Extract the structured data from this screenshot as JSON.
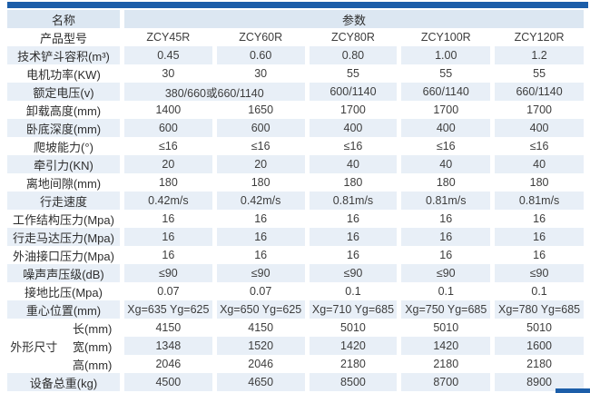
{
  "table": {
    "header": {
      "name_label": "名称",
      "param_label": "参数"
    },
    "rows": [
      {
        "label": "产品型号",
        "cells": [
          "ZCY45R",
          "ZCY60R",
          "ZCY80R",
          "ZCY100R",
          "ZCY120R"
        ]
      },
      {
        "label": "技术铲斗容积(m³)",
        "cells": [
          "0.45",
          "0.60",
          "0.80",
          "1.00",
          "1.2"
        ]
      },
      {
        "label": "电机功率(KW)",
        "cells": [
          "30",
          "30",
          "55",
          "55",
          "55"
        ]
      },
      {
        "label": "额定电压(v)",
        "cells": [
          {
            "text": "380/660或660/1140",
            "span": 2
          },
          "600/1140",
          "660/1140",
          "660/1140"
        ]
      },
      {
        "label": "卸载高度(mm)",
        "cells": [
          "1400",
          "1650",
          "1700",
          "1700",
          "1700"
        ]
      },
      {
        "label": "卧底深度(mm)",
        "cells": [
          "600",
          "600",
          "400",
          "400",
          "400"
        ]
      },
      {
        "label": "爬坡能力(°)",
        "cells": [
          "≤16",
          "≤16",
          "≤16",
          "≤16",
          "≤16"
        ]
      },
      {
        "label": "牵引力(KN)",
        "cells": [
          "20",
          "20",
          "40",
          "40",
          "40"
        ]
      },
      {
        "label": "离地间隙(mm)",
        "cells": [
          "180",
          "180",
          "180",
          "180",
          "180"
        ]
      },
      {
        "label": "行走速度",
        "cells": [
          "0.42m/s",
          "0.42m/s",
          "0.81m/s",
          "0.81m/s",
          "0.81m/s"
        ]
      },
      {
        "label": "工作结构压力(Mpa)",
        "cells": [
          "16",
          "16",
          "16",
          "16",
          "16"
        ]
      },
      {
        "label": "行走马达压力(Mpa)",
        "cells": [
          "16",
          "16",
          "16",
          "16",
          "16"
        ]
      },
      {
        "label": "外油接口压力(Mpa)",
        "cells": [
          "16",
          "16",
          "16",
          "16",
          "16"
        ]
      },
      {
        "label": "噪声声压级(dB)",
        "cells": [
          "≤90",
          "≤90",
          "≤90",
          "≤90",
          "≤90"
        ]
      },
      {
        "label": "接地比压(Mpa)",
        "cells": [
          "0.07",
          "0.07",
          "0.1",
          "0.1",
          "0.1"
        ]
      },
      {
        "label": "重心位置(mm)",
        "cells": [
          "Xg=635 Yg=625",
          "Xg=650 Yg=625",
          "Xg=710 Yg=685",
          "Xg=750 Yg=685",
          "Xg=780 Yg=685"
        ]
      },
      {
        "group": "外形尺寸",
        "group_span": 3,
        "sublabel": "长(mm)",
        "cells": [
          "4150",
          "4150",
          "5010",
          "5010",
          "5010"
        ]
      },
      {
        "sublabel": "宽(mm)",
        "cells": [
          "1348",
          "1520",
          "1420",
          "1420",
          "1600"
        ]
      },
      {
        "sublabel": "高(mm)",
        "cells": [
          "2046",
          "2046",
          "2180",
          "2180",
          "2180"
        ]
      },
      {
        "label": "设备总重(kg)",
        "cells": [
          "4500",
          "4650",
          "8500",
          "8700",
          "8900"
        ]
      }
    ],
    "accent_color": "#1c5ea9",
    "stripe_color": "#e8eff7",
    "header_bg_color": "#dce7f2"
  }
}
